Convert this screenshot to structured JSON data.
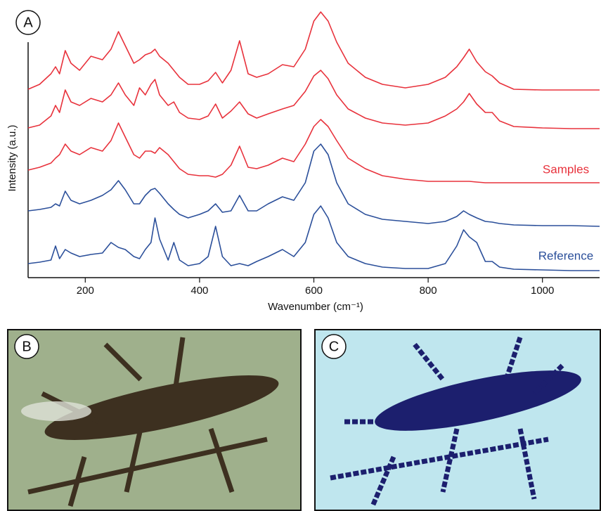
{
  "chart_data": {
    "type": "line",
    "panel_label": "A",
    "xlabel": "Wavenumber (cm⁻¹)",
    "ylabel": "Intensity (a.u.)",
    "x": [
      100,
      120,
      140,
      148,
      155,
      165,
      175,
      190,
      210,
      230,
      245,
      258,
      270,
      285,
      295,
      305,
      315,
      322,
      330,
      345,
      355,
      365,
      380,
      400,
      415,
      428,
      440,
      455,
      470,
      485,
      500,
      520,
      545,
      565,
      585,
      600,
      612,
      625,
      640,
      660,
      690,
      720,
      760,
      800,
      830,
      850,
      862,
      872,
      885,
      900,
      912,
      925,
      950,
      1000,
      1050,
      1100
    ],
    "xlim": [
      100,
      1100
    ],
    "xticks": [
      200,
      400,
      600,
      800,
      1000
    ],
    "ylim": [
      0,
      380
    ],
    "series": [
      {
        "color": "#e8323c",
        "values": [
          268,
          275,
          290,
          300,
          290,
          323,
          305,
          295,
          315,
          310,
          325,
          350,
          330,
          305,
          310,
          317,
          320,
          325,
          315,
          305,
          295,
          285,
          275,
          275,
          280,
          292,
          277,
          295,
          337,
          290,
          285,
          290,
          303,
          300,
          325,
          365,
          378,
          365,
          335,
          305,
          285,
          275,
          270,
          275,
          285,
          300,
          313,
          325,
          307,
          293,
          287,
          277,
          268,
          267,
          267,
          267
        ]
      },
      {
        "color": "#e8323c",
        "values": [
          213,
          217,
          230,
          245,
          235,
          267,
          250,
          245,
          255,
          250,
          260,
          277,
          260,
          245,
          270,
          260,
          275,
          282,
          260,
          245,
          250,
          235,
          227,
          225,
          230,
          247,
          227,
          237,
          250,
          233,
          227,
          233,
          240,
          245,
          265,
          287,
          295,
          283,
          260,
          240,
          227,
          220,
          217,
          220,
          230,
          240,
          250,
          262,
          247,
          235,
          235,
          223,
          215,
          213,
          212,
          212
        ]
      },
      {
        "color": "#e8323c",
        "values": [
          153,
          157,
          163,
          170,
          175,
          190,
          180,
          175,
          185,
          180,
          195,
          220,
          200,
          175,
          170,
          180,
          180,
          177,
          185,
          175,
          165,
          155,
          147,
          145,
          145,
          143,
          147,
          160,
          187,
          157,
          155,
          160,
          170,
          165,
          190,
          215,
          225,
          215,
          195,
          170,
          155,
          145,
          140,
          137,
          137,
          137,
          137,
          137,
          136,
          135,
          135,
          135,
          135,
          135,
          135,
          135
        ]
      },
      {
        "color": "#2b4f9a",
        "values": [
          95,
          97,
          100,
          105,
          102,
          123,
          110,
          105,
          110,
          117,
          125,
          138,
          125,
          105,
          105,
          117,
          125,
          127,
          120,
          105,
          97,
          90,
          85,
          90,
          95,
          105,
          93,
          95,
          117,
          95,
          95,
          105,
          115,
          110,
          135,
          180,
          190,
          175,
          135,
          105,
          90,
          83,
          80,
          77,
          80,
          87,
          95,
          90,
          85,
          80,
          79,
          77,
          75,
          74,
          74,
          73
        ]
      },
      {
        "color": "#2b4f9a",
        "values": [
          20,
          22,
          25,
          45,
          27,
          40,
          35,
          30,
          33,
          35,
          50,
          43,
          40,
          30,
          27,
          40,
          50,
          85,
          55,
          25,
          50,
          25,
          17,
          20,
          30,
          73,
          30,
          17,
          20,
          17,
          23,
          30,
          40,
          30,
          50,
          90,
          102,
          85,
          50,
          30,
          20,
          15,
          13,
          13,
          20,
          45,
          68,
          58,
          50,
          23,
          23,
          15,
          12,
          11,
          10,
          10
        ]
      }
    ],
    "annotations": [
      {
        "text": "Samples",
        "color": "#e8323c"
      },
      {
        "text": "Reference",
        "color": "#2b4f9a"
      }
    ]
  },
  "panels": [
    {
      "label": "B"
    },
    {
      "label": "C"
    }
  ]
}
